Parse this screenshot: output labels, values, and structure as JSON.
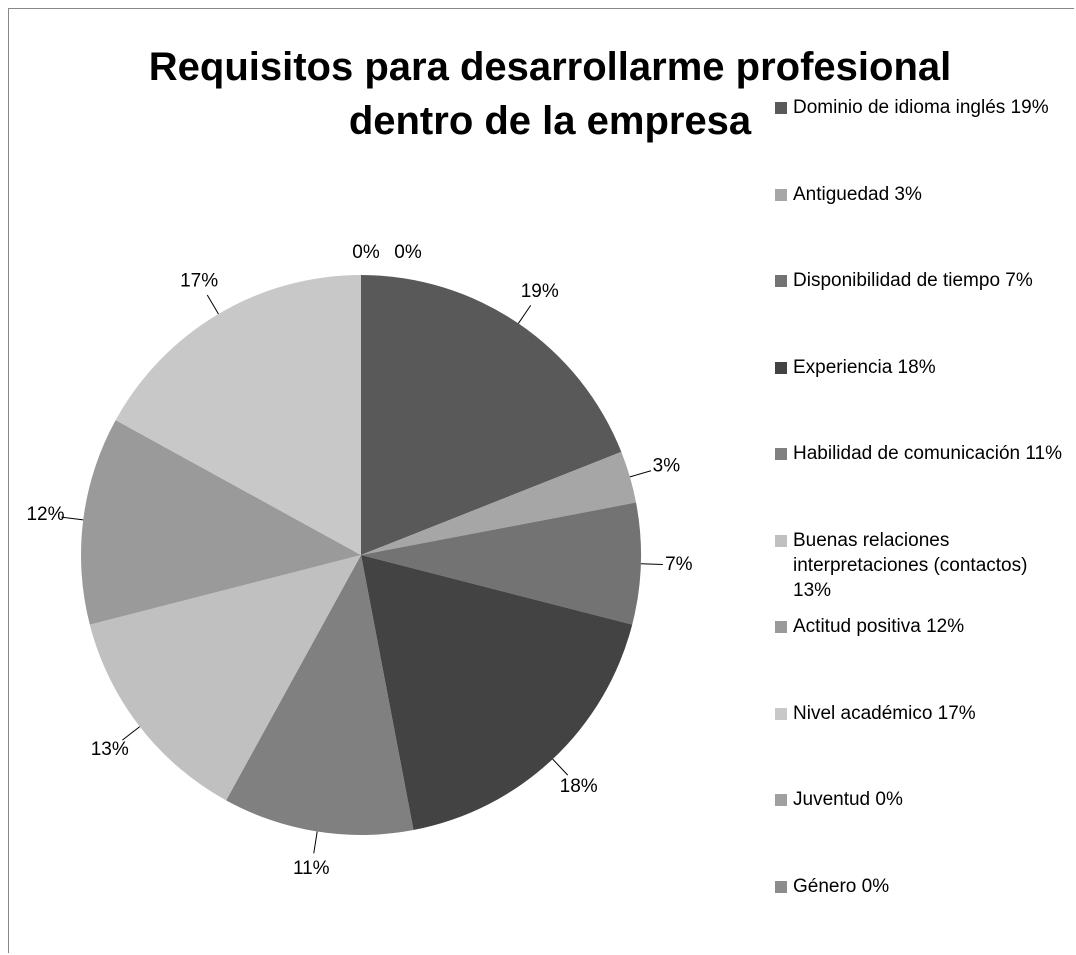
{
  "chart_data": {
    "type": "pie",
    "title": "Requisitos para desarrollarme profesional dentro de la empresa",
    "categories": [
      "Dominio de idioma inglés 19%",
      "Antiguedad  3%",
      "Disponibilidad de tiempo 7%",
      "Experiencia 18%",
      "Habilidad de comunicación 11%",
      "Buenas relaciones interpretaciones (contactos) 13%",
      "Actitud positiva 12%",
      "Nivel académico 17%",
      "Juventud 0%",
      "Género 0%"
    ],
    "values": [
      19,
      3,
      7,
      18,
      11,
      13,
      12,
      17,
      0,
      0
    ],
    "value_labels": [
      "19%",
      "3%",
      "7%",
      "18%",
      "11%",
      "13%",
      "12%",
      "17%",
      "0%",
      "0%"
    ],
    "colors": [
      "#595959",
      "#a6a6a6",
      "#737373",
      "#434343",
      "#808080",
      "#c0c0c0",
      "#9a9a9a",
      "#c8c8c8",
      "#a0a0a0",
      "#8c8c8c"
    ],
    "legend": "right"
  }
}
